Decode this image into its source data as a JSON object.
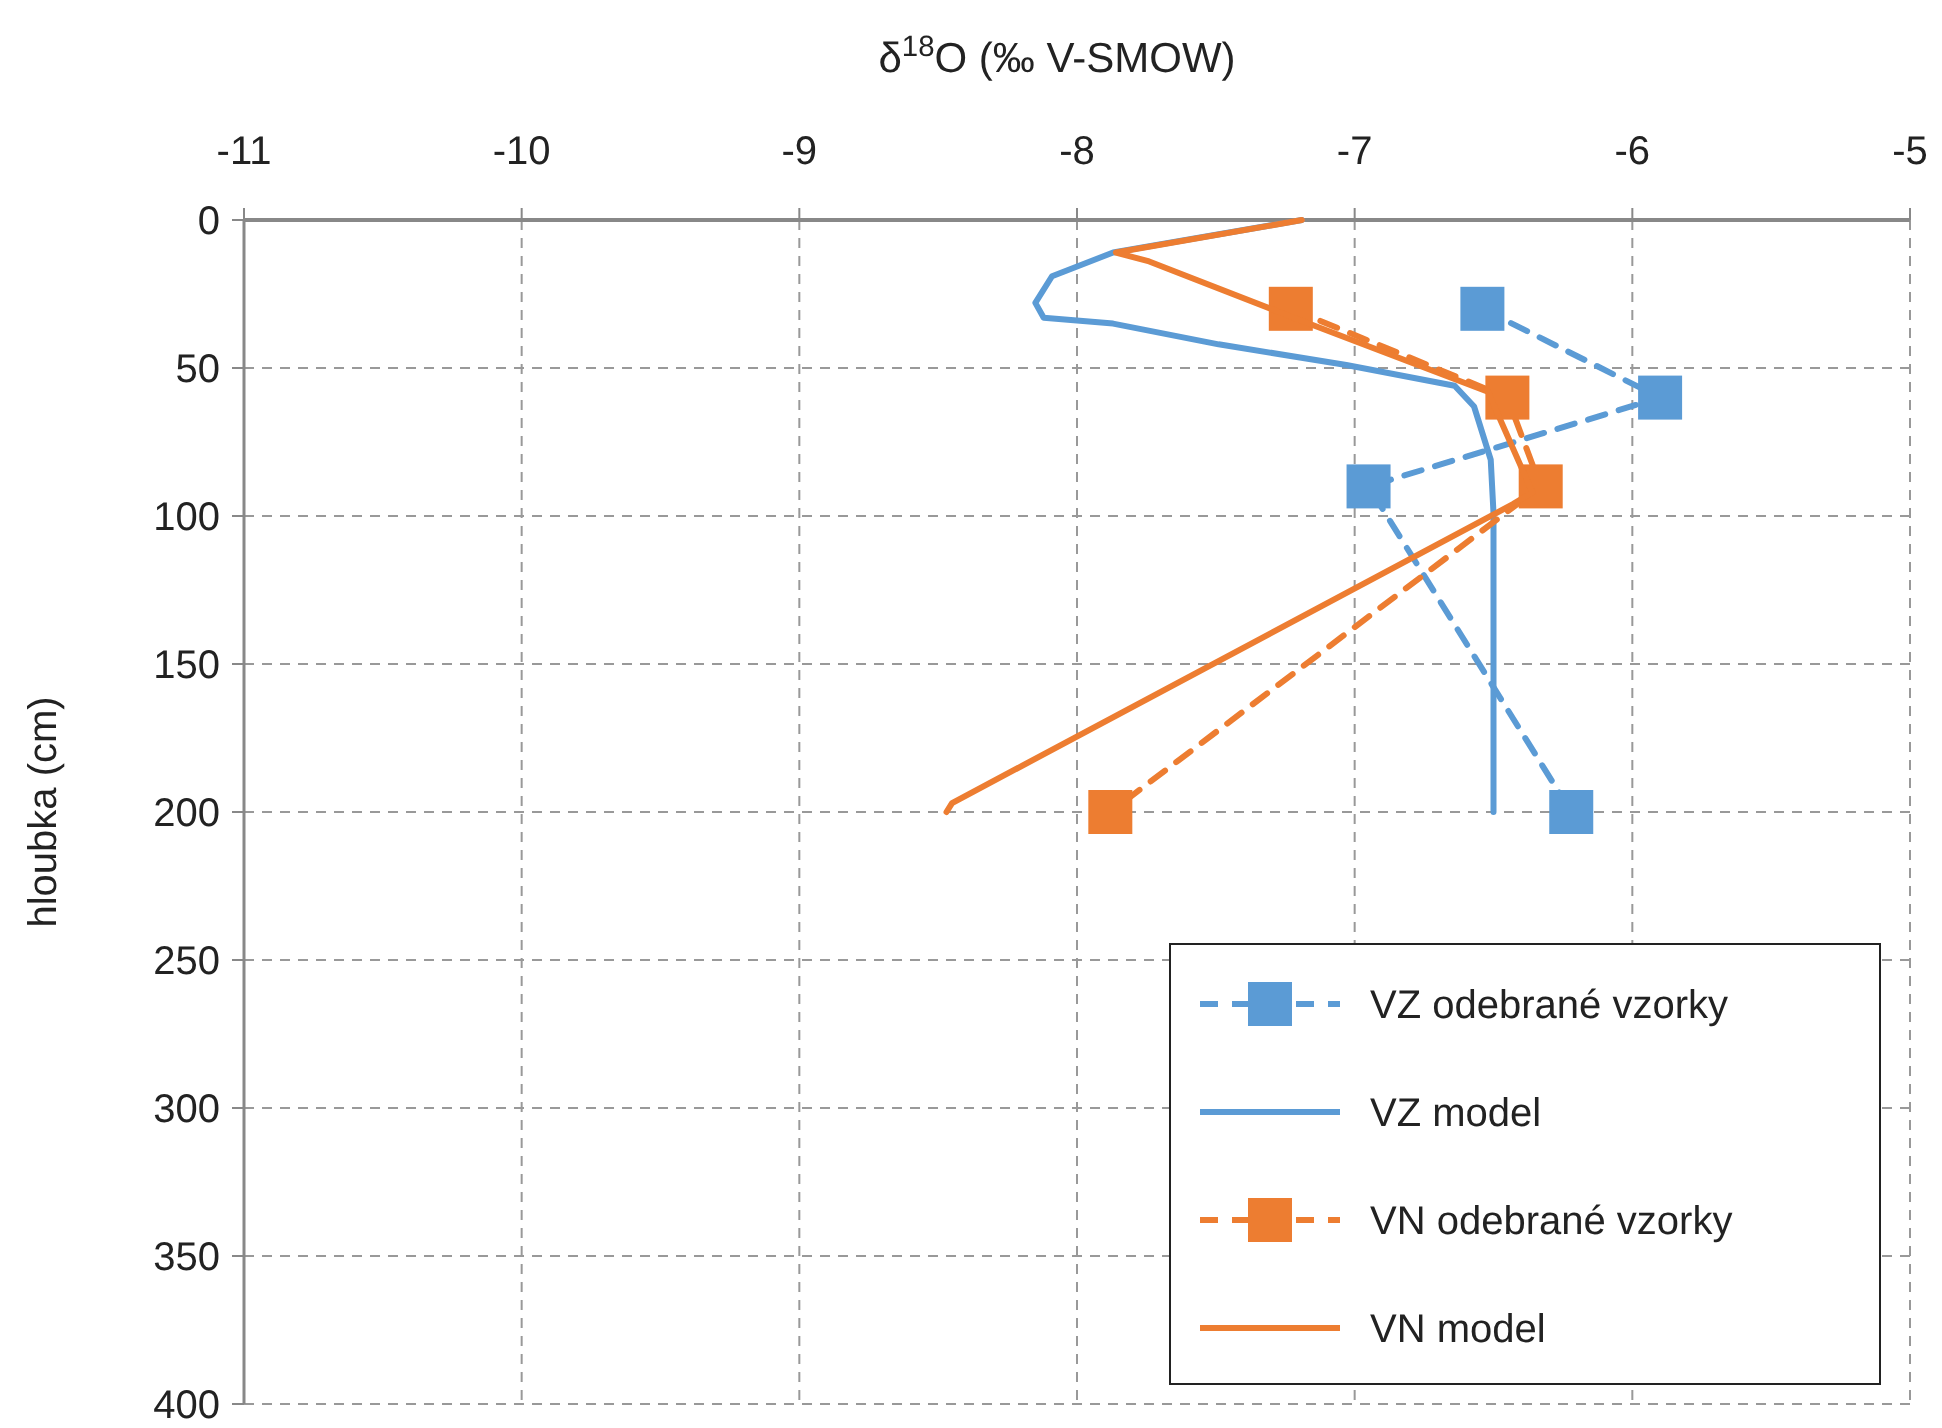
{
  "chart_data": {
    "type": "line",
    "xlabel": "δ$^{18}$O (‰ V-SMOW)",
    "ylabel": "hloubka (cm)",
    "xlim": [
      -11,
      -5
    ],
    "xticks": [
      -11,
      -10,
      -9,
      -8,
      -7,
      -6,
      -5
    ],
    "ylim": [
      400,
      0
    ],
    "yticks": [
      0,
      50,
      100,
      150,
      200,
      250,
      300,
      350,
      400
    ],
    "grid": true,
    "legend": "bottom right",
    "series": [
      {
        "name": "VZ odebrané vzorky",
        "color": "#5b9bd5",
        "line_style": "dashed",
        "marker": "square",
        "x": [
          -6.54,
          -5.9,
          -6.95,
          -6.22
        ],
        "values": [
          30,
          60,
          90,
          200
        ]
      },
      {
        "name": "VZ model",
        "color": "#5b9bd5",
        "line_style": "solid",
        "marker": "none",
        "x": [
          -7.19,
          -7.87,
          -8.09,
          -8.15,
          -8.12,
          -7.87,
          -7.49,
          -7.03,
          -6.64,
          -6.57,
          -6.51,
          -6.5,
          -6.5
        ],
        "values": [
          0,
          11,
          19,
          28,
          33,
          35,
          42,
          49,
          56,
          63,
          81,
          99,
          200
        ]
      },
      {
        "name": "VN odebrané vzorky",
        "color": "#ed7d31",
        "line_style": "dashed",
        "marker": "square",
        "x": [
          -7.23,
          -6.45,
          -6.33,
          -7.88
        ],
        "values": [
          30,
          60,
          90,
          200
        ]
      },
      {
        "name": "VN model",
        "color": "#ed7d31",
        "line_style": "solid",
        "marker": "none",
        "x": [
          -7.19,
          -7.86,
          -7.74,
          -7.22,
          -6.52,
          -6.36,
          -6.43,
          -8.45,
          -8.47
        ],
        "values": [
          0,
          11,
          14,
          33,
          58,
          92,
          96,
          197,
          200
        ]
      }
    ]
  }
}
